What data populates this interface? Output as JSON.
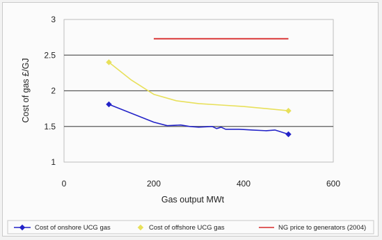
{
  "chart_data": {
    "type": "line",
    "xlabel": "Gas output MWt",
    "ylabel": "Cost of gas £/GJ",
    "xlim": [
      0,
      600
    ],
    "ylim": [
      1,
      3
    ],
    "x_ticks": [
      "0",
      "200",
      "400",
      "600"
    ],
    "y_ticks": [
      "1",
      "1.5",
      "2",
      "2.5",
      "3"
    ],
    "grid": "horizontal",
    "legend_position": "bottom",
    "series": [
      {
        "name": "Cost of onshore UCG gas",
        "color": "#2323c8",
        "marker": "diamond",
        "x": [
          100,
          200,
          230,
          260,
          280,
          300,
          330,
          340,
          350,
          360,
          390,
          420,
          450,
          470,
          480,
          500
        ],
        "y": [
          1.81,
          1.56,
          1.51,
          1.52,
          1.5,
          1.49,
          1.5,
          1.47,
          1.49,
          1.46,
          1.46,
          1.45,
          1.44,
          1.45,
          1.43,
          1.39
        ]
      },
      {
        "name": "Cost of offshore UCG gas",
        "color": "#e8e05a",
        "marker": "diamond",
        "x": [
          100,
          150,
          200,
          250,
          300,
          350,
          400,
          450,
          500
        ],
        "y": [
          2.4,
          2.15,
          1.95,
          1.86,
          1.82,
          1.8,
          1.78,
          1.75,
          1.72
        ]
      },
      {
        "name": "NG price to generators (2004)",
        "color": "#d82a2a",
        "marker": "none",
        "x": [
          200,
          500
        ],
        "y": [
          2.73,
          2.73
        ]
      }
    ]
  }
}
